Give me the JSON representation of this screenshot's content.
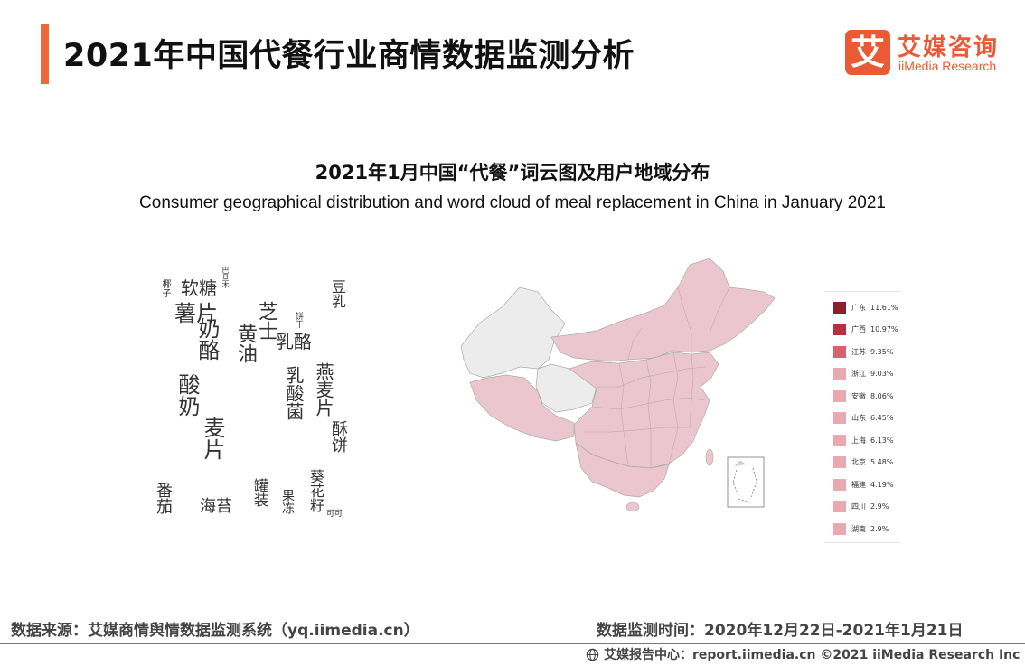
{
  "header": {
    "title": "2021年中国代餐行业商情数据监测分析",
    "logo_mark": "艾",
    "logo_cn": "艾媒咨询",
    "logo_en": "iiMedia Research",
    "accent_color": "#ef6a3a"
  },
  "chart_data": {
    "type": "map",
    "title": "2021年1月中国“代餐”词云图及用户地域分布",
    "subtitle": "Consumer geographical distribution and word cloud of meal replacement in China in January 2021",
    "regions": [
      {
        "name": "广东",
        "value": "11.61%",
        "share": 11.61,
        "color": "#8b1f2b"
      },
      {
        "name": "广西",
        "value": "10.97%",
        "share": 10.97,
        "color": "#b7303f"
      },
      {
        "name": "江苏",
        "value": "9.35%",
        "share": 9.35,
        "color": "#d9626f"
      },
      {
        "name": "浙江",
        "value": "9.03%",
        "share": 9.03,
        "color": "#e8a9b1"
      },
      {
        "name": "安徽",
        "value": "8.06%",
        "share": 8.06,
        "color": "#e8a9b1"
      },
      {
        "name": "山东",
        "value": "6.45%",
        "share": 6.45,
        "color": "#e8a9b1"
      },
      {
        "name": "上海",
        "value": "6.13%",
        "share": 6.13,
        "color": "#e8a9b1"
      },
      {
        "name": "北京",
        "value": "5.48%",
        "share": 5.48,
        "color": "#e8a9b1"
      },
      {
        "name": "福建",
        "value": "4.19%",
        "share": 4.19,
        "color": "#e8a9b1"
      },
      {
        "name": "四川",
        "value": "2.9%",
        "share": 2.9,
        "color": "#e8a9b1"
      },
      {
        "name": "湖南",
        "value": "2.9%",
        "share": 2.9,
        "color": "#e8a9b1"
      }
    ],
    "map_fill_color": "#ecc6ce",
    "map_nodata_color": "#ececec",
    "legend_position": "right"
  },
  "wordcloud": {
    "words": [
      {
        "text": "海苔",
        "size": 18
      },
      {
        "text": "奶酪",
        "size": 24
      },
      {
        "text": "薯片",
        "size": 24
      },
      {
        "text": "麦片",
        "size": 24
      },
      {
        "text": "酸奶",
        "size": 24
      },
      {
        "text": "黄油",
        "size": 22
      },
      {
        "text": "芝士",
        "size": 22
      },
      {
        "text": "乳酪",
        "size": 20
      },
      {
        "text": "软糖",
        "size": 20
      },
      {
        "text": "燕麦片",
        "size": 20
      },
      {
        "text": "乳酸菌",
        "size": 20
      },
      {
        "text": "豆乳",
        "size": 16
      },
      {
        "text": "番茄",
        "size": 18
      },
      {
        "text": "酥饼",
        "size": 18
      },
      {
        "text": "果冻",
        "size": 14
      },
      {
        "text": "葵花籽",
        "size": 16
      },
      {
        "text": "罐装",
        "size": 16
      },
      {
        "text": "可可",
        "size": 9
      },
      {
        "text": "椰子",
        "size": 10
      },
      {
        "text": "饼干",
        "size": 9
      },
      {
        "text": "巴旦木",
        "size": 8
      }
    ]
  },
  "footer": {
    "source": "数据来源：艾媒商情舆情数据监测系统（yq.iimedia.cn）",
    "period": "数据监测时间：2020年12月22日-2021年1月21日",
    "credit": "艾媒报告中心：report.iimedia.cn   ©2021  iiMedia Research  Inc"
  }
}
